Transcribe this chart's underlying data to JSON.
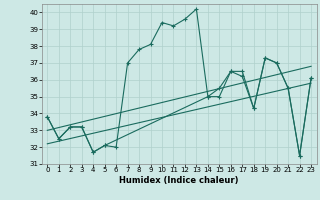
{
  "xlabel": "Humidex (Indice chaleur)",
  "background_color": "#cde8e5",
  "line_color": "#1a6b5e",
  "grid_color": "#b0d0cc",
  "xlim": [
    -0.5,
    23.5
  ],
  "ylim": [
    31,
    40.5
  ],
  "yticks": [
    31,
    32,
    33,
    34,
    35,
    36,
    37,
    38,
    39,
    40
  ],
  "xticks": [
    0,
    1,
    2,
    3,
    4,
    5,
    6,
    7,
    8,
    9,
    10,
    11,
    12,
    13,
    14,
    15,
    16,
    17,
    18,
    19,
    20,
    21,
    22,
    23
  ],
  "series1_x": [
    0,
    1,
    2,
    3,
    4,
    5,
    6,
    7,
    8,
    9,
    10,
    11,
    12,
    13,
    14,
    15,
    16,
    17,
    18,
    19,
    20,
    21,
    22,
    23
  ],
  "series1_y": [
    33.8,
    32.5,
    33.2,
    33.2,
    31.7,
    32.1,
    32.0,
    37.0,
    37.8,
    38.1,
    39.4,
    39.2,
    39.6,
    40.2,
    35.0,
    35.0,
    36.5,
    36.2,
    34.3,
    37.3,
    37.0,
    35.5,
    31.5,
    36.1
  ],
  "series2_x": [
    0,
    1,
    2,
    3,
    4,
    5,
    14,
    15,
    16,
    17,
    18,
    19,
    20,
    21,
    22,
    23
  ],
  "series2_y": [
    33.8,
    32.5,
    33.2,
    33.2,
    31.7,
    32.1,
    35.0,
    35.5,
    36.5,
    36.5,
    34.3,
    37.3,
    37.0,
    35.5,
    31.5,
    36.1
  ],
  "trend1_x": [
    0,
    23
  ],
  "trend1_y": [
    33.0,
    36.8
  ],
  "trend2_x": [
    0,
    23
  ],
  "trend2_y": [
    32.2,
    35.8
  ]
}
